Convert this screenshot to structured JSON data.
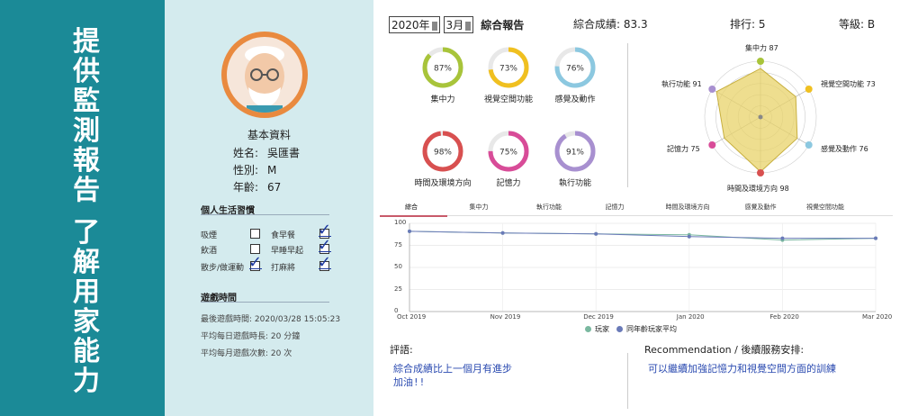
{
  "sidebar": {
    "title_a": "提供監測報告",
    "title_b": "了解用家能力"
  },
  "profile": {
    "section_title": "基本資料",
    "rows": [
      {
        "key": "姓名:",
        "value": "吳匯書"
      },
      {
        "key": "性別:",
        "value": "M"
      },
      {
        "key": "年齡:",
        "value": "67"
      }
    ]
  },
  "habits": {
    "title": "個人生活習慣",
    "items": [
      {
        "label": "吸煙",
        "checked": false
      },
      {
        "label": "食早餐",
        "checked": true
      },
      {
        "label": "飲酒",
        "checked": false
      },
      {
        "label": "早睡早起",
        "checked": true
      },
      {
        "label": "散步/做運動",
        "checked": true
      },
      {
        "label": "打麻將",
        "checked": true
      }
    ]
  },
  "gametime": {
    "title": "遊戲時間",
    "last": "最後遊戲時間: 2020/03/28 15:05:23",
    "daily": "平均每日遊戲時長: 20 分鐘",
    "monthly": "平均每月遊戲次數: 20 次"
  },
  "header": {
    "year": "2020年",
    "month": "3月",
    "report": "綜合報告",
    "score": "綜合成績: 83.3",
    "rank": "排行: 5",
    "grade": "等級: B"
  },
  "donuts": [
    {
      "pct": 87,
      "label": "集中力",
      "color": "#a8c43a"
    },
    {
      "pct": 73,
      "label": "視覺空間功能",
      "color": "#f0c020"
    },
    {
      "pct": 76,
      "label": "感覺及動作",
      "color": "#8cc8e0"
    },
    {
      "pct": 98,
      "label": "時間及環境方向",
      "color": "#d85050"
    },
    {
      "pct": 75,
      "label": "記憶力",
      "color": "#d84c98"
    },
    {
      "pct": 91,
      "label": "執行功能",
      "color": "#a890d0"
    }
  ],
  "radar": [
    {
      "label": "集中力 87",
      "value": 87,
      "color": "#a8c43a"
    },
    {
      "label": "視覺空間功能 73",
      "value": 73,
      "color": "#f0c020"
    },
    {
      "label": "感覺及動作 76",
      "value": 76,
      "color": "#8cc8e0"
    },
    {
      "label": "時間及環境方向 98",
      "value": 98,
      "color": "#d85050"
    },
    {
      "label": "記憶力 75",
      "value": 75,
      "color": "#d84c98"
    },
    {
      "label": "執行功能 91",
      "value": 91,
      "color": "#a890d0"
    }
  ],
  "tabs": [
    "綜合",
    "集中力",
    "執行功能",
    "記憶力",
    "時間及環境方向",
    "感覺及動作",
    "視覺空間功能"
  ],
  "chart_data": {
    "type": "line",
    "categories": [
      "Oct 2019",
      "Nov 2019",
      "Dec 2019",
      "Jan 2020",
      "Feb 2020",
      "Mar 2020"
    ],
    "yticks": [
      "0",
      "25",
      "50",
      "75",
      "100"
    ],
    "ylim": [
      0,
      100
    ],
    "series": [
      {
        "name": "玩家",
        "color": "#7ab8a0",
        "values": [
          91,
          89,
          88,
          87,
          81,
          83
        ]
      },
      {
        "name": "同年齡玩家平均",
        "color": "#6a7ab8",
        "values": [
          91,
          89,
          88,
          85,
          83,
          83
        ]
      }
    ]
  },
  "comments": {
    "title": "評語:",
    "text1": "綜合成績比上一個月有進步",
    "text2": "加油!!",
    "rec_title": "Recommendation / 後續服務安排:",
    "rec_text": "可以繼續加強記憶力和視覺空間方面的訓練"
  }
}
